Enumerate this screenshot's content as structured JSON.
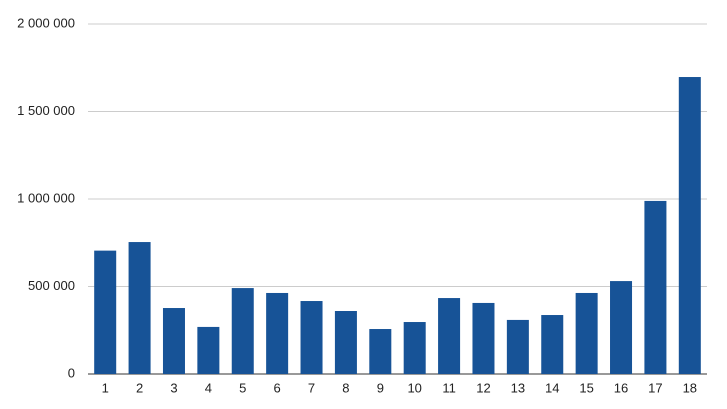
{
  "chart_data": {
    "type": "bar",
    "categories": [
      "1",
      "2",
      "3",
      "4",
      "5",
      "6",
      "7",
      "8",
      "9",
      "10",
      "11",
      "12",
      "13",
      "14",
      "15",
      "16",
      "17",
      "18"
    ],
    "values": [
      705000,
      754000,
      377000,
      269000,
      491000,
      463000,
      417000,
      360000,
      257000,
      297000,
      434000,
      406000,
      309000,
      337000,
      463000,
      531000,
      989000,
      1697000
    ],
    "color": "#175397",
    "ylim": [
      0,
      2000000
    ],
    "yticks": [
      0,
      {
        "value": 500000,
        "label": "500 000"
      },
      {
        "value": 1000000,
        "label": "1 000 000"
      },
      {
        "value": 1500000,
        "label": "1 500 000"
      },
      {
        "value": 2000000,
        "label": "2 000 000"
      }
    ],
    "grid": true
  }
}
